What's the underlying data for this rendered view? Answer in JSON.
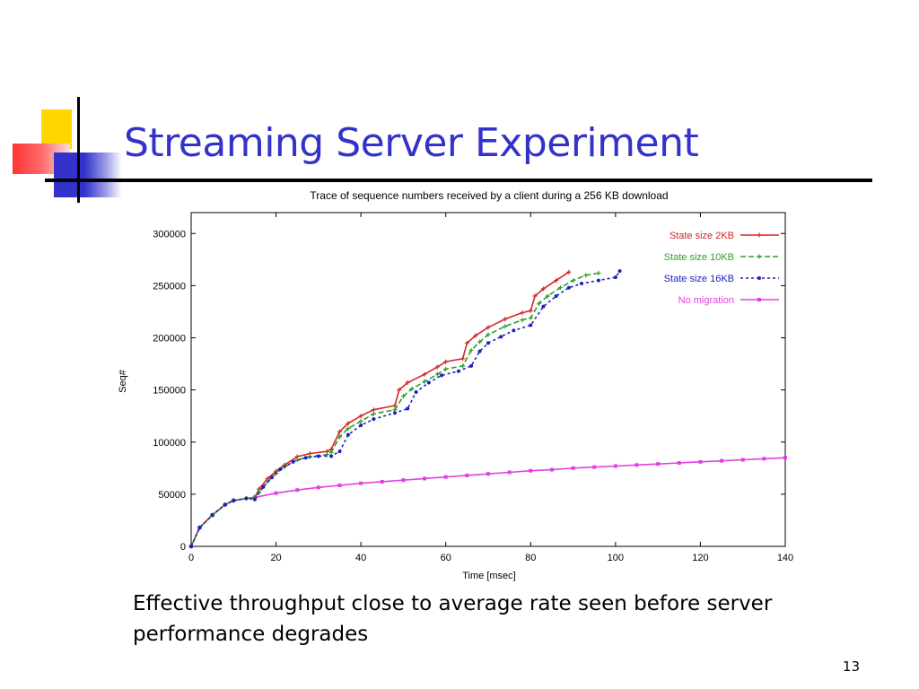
{
  "slide": {
    "title": "Streaming Server Experiment",
    "caption": "Effective throughput close to average rate seen before server performance degrades",
    "page_number": "13"
  },
  "colors": {
    "title": "#3333cc",
    "deco_yellow": "#ffd700",
    "deco_blue": "#3333cc",
    "deco_red": "#ff3333"
  },
  "chart_data": {
    "type": "line",
    "title": "Trace of sequence numbers received by a client during a 256 KB download",
    "xlabel": "Time [msec]",
    "ylabel": "Seq#",
    "xlim": [
      0,
      140
    ],
    "ylim": [
      0,
      320000
    ],
    "xticks": [
      0,
      20,
      40,
      60,
      80,
      100,
      120,
      140
    ],
    "yticks": [
      0,
      50000,
      100000,
      150000,
      200000,
      250000,
      300000
    ],
    "grid": false,
    "legend_position": "top-right",
    "series": [
      {
        "name": "State size 2KB",
        "color": "#d62728",
        "dash": "",
        "marker": "plus",
        "x": [
          0,
          2,
          5,
          8,
          10,
          13,
          15,
          16,
          18,
          20,
          22,
          25,
          28,
          32,
          33,
          35,
          37,
          40,
          43,
          48,
          49,
          51,
          55,
          58,
          60,
          64,
          65,
          67,
          70,
          74,
          78,
          80,
          81,
          83,
          86,
          89
        ],
        "y": [
          0,
          18000,
          30000,
          40000,
          44000,
          46000,
          47000,
          55000,
          65000,
          72000,
          78000,
          86000,
          89000,
          91000,
          93000,
          110000,
          118000,
          125000,
          131000,
          135000,
          150000,
          157000,
          165000,
          172000,
          177000,
          180000,
          195000,
          202000,
          210000,
          218000,
          224000,
          226000,
          240000,
          247000,
          255000,
          263000
        ]
      },
      {
        "name": "State size 10KB",
        "color": "#2ca02c",
        "dash": "6 3",
        "marker": "plus",
        "x": [
          0,
          2,
          5,
          8,
          10,
          13,
          15,
          16,
          18,
          20,
          22,
          25,
          28,
          32,
          33,
          35,
          37,
          40,
          43,
          48,
          50,
          52,
          55,
          58,
          60,
          64,
          66,
          68,
          70,
          74,
          78,
          80,
          82,
          84,
          87,
          90,
          93,
          96
        ],
        "y": [
          0,
          18000,
          30000,
          40000,
          44000,
          46000,
          46500,
          52000,
          62000,
          70000,
          76000,
          83000,
          86000,
          88000,
          90000,
          105000,
          113000,
          120000,
          127000,
          131000,
          144000,
          151000,
          158000,
          165000,
          170000,
          173000,
          188000,
          196000,
          203000,
          211000,
          217000,
          219000,
          233000,
          240000,
          248000,
          255000,
          260000,
          262000
        ]
      },
      {
        "name": "State size 16KB",
        "color": "#1f1fbf",
        "dash": "3 3",
        "marker": "dot",
        "x": [
          0,
          2,
          5,
          8,
          10,
          13,
          15,
          17,
          19,
          21,
          24,
          27,
          30,
          33,
          35,
          37,
          40,
          43,
          48,
          51,
          53,
          56,
          59,
          63,
          66,
          68,
          70,
          73,
          76,
          80,
          83,
          86,
          89,
          92,
          96,
          100,
          101
        ],
        "y": [
          0,
          18000,
          30000,
          40000,
          44000,
          46000,
          45000,
          57000,
          66000,
          74000,
          81000,
          85000,
          86500,
          86500,
          91000,
          107000,
          116000,
          122000,
          128000,
          132000,
          148000,
          157000,
          164000,
          168000,
          173000,
          187000,
          195000,
          201000,
          207000,
          212000,
          230000,
          240000,
          248000,
          252000,
          255000,
          258000,
          264000
        ]
      },
      {
        "name": "No migration",
        "color": "#e040e0",
        "dash": "",
        "marker": "square",
        "x": [
          0,
          2,
          5,
          8,
          10,
          15,
          20,
          25,
          30,
          35,
          40,
          45,
          50,
          55,
          60,
          65,
          70,
          75,
          80,
          85,
          90,
          95,
          100,
          105,
          110,
          115,
          120,
          125,
          130,
          135,
          140
        ],
        "y": [
          0,
          18000,
          30000,
          40000,
          44000,
          47000,
          51000,
          54000,
          56500,
          58500,
          60500,
          62000,
          63500,
          65000,
          66500,
          68000,
          69500,
          71000,
          72500,
          73500,
          75000,
          76000,
          77000,
          78000,
          79000,
          80000,
          81000,
          82000,
          83000,
          84000,
          85000
        ]
      }
    ]
  }
}
